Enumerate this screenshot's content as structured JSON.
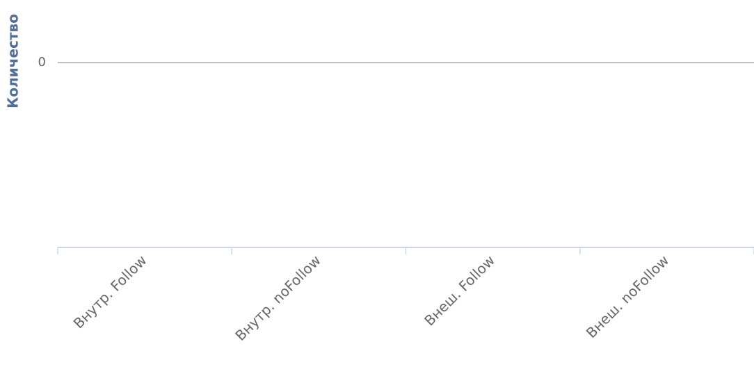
{
  "chart_data": {
    "type": "bar",
    "y_label": "Количество",
    "categories": [
      "Внутр. Follow",
      "Внутр. noFollow",
      "Внеш. Follow",
      "Внеш. noFollow"
    ],
    "yticks": [
      0
    ],
    "grid": true
  }
}
